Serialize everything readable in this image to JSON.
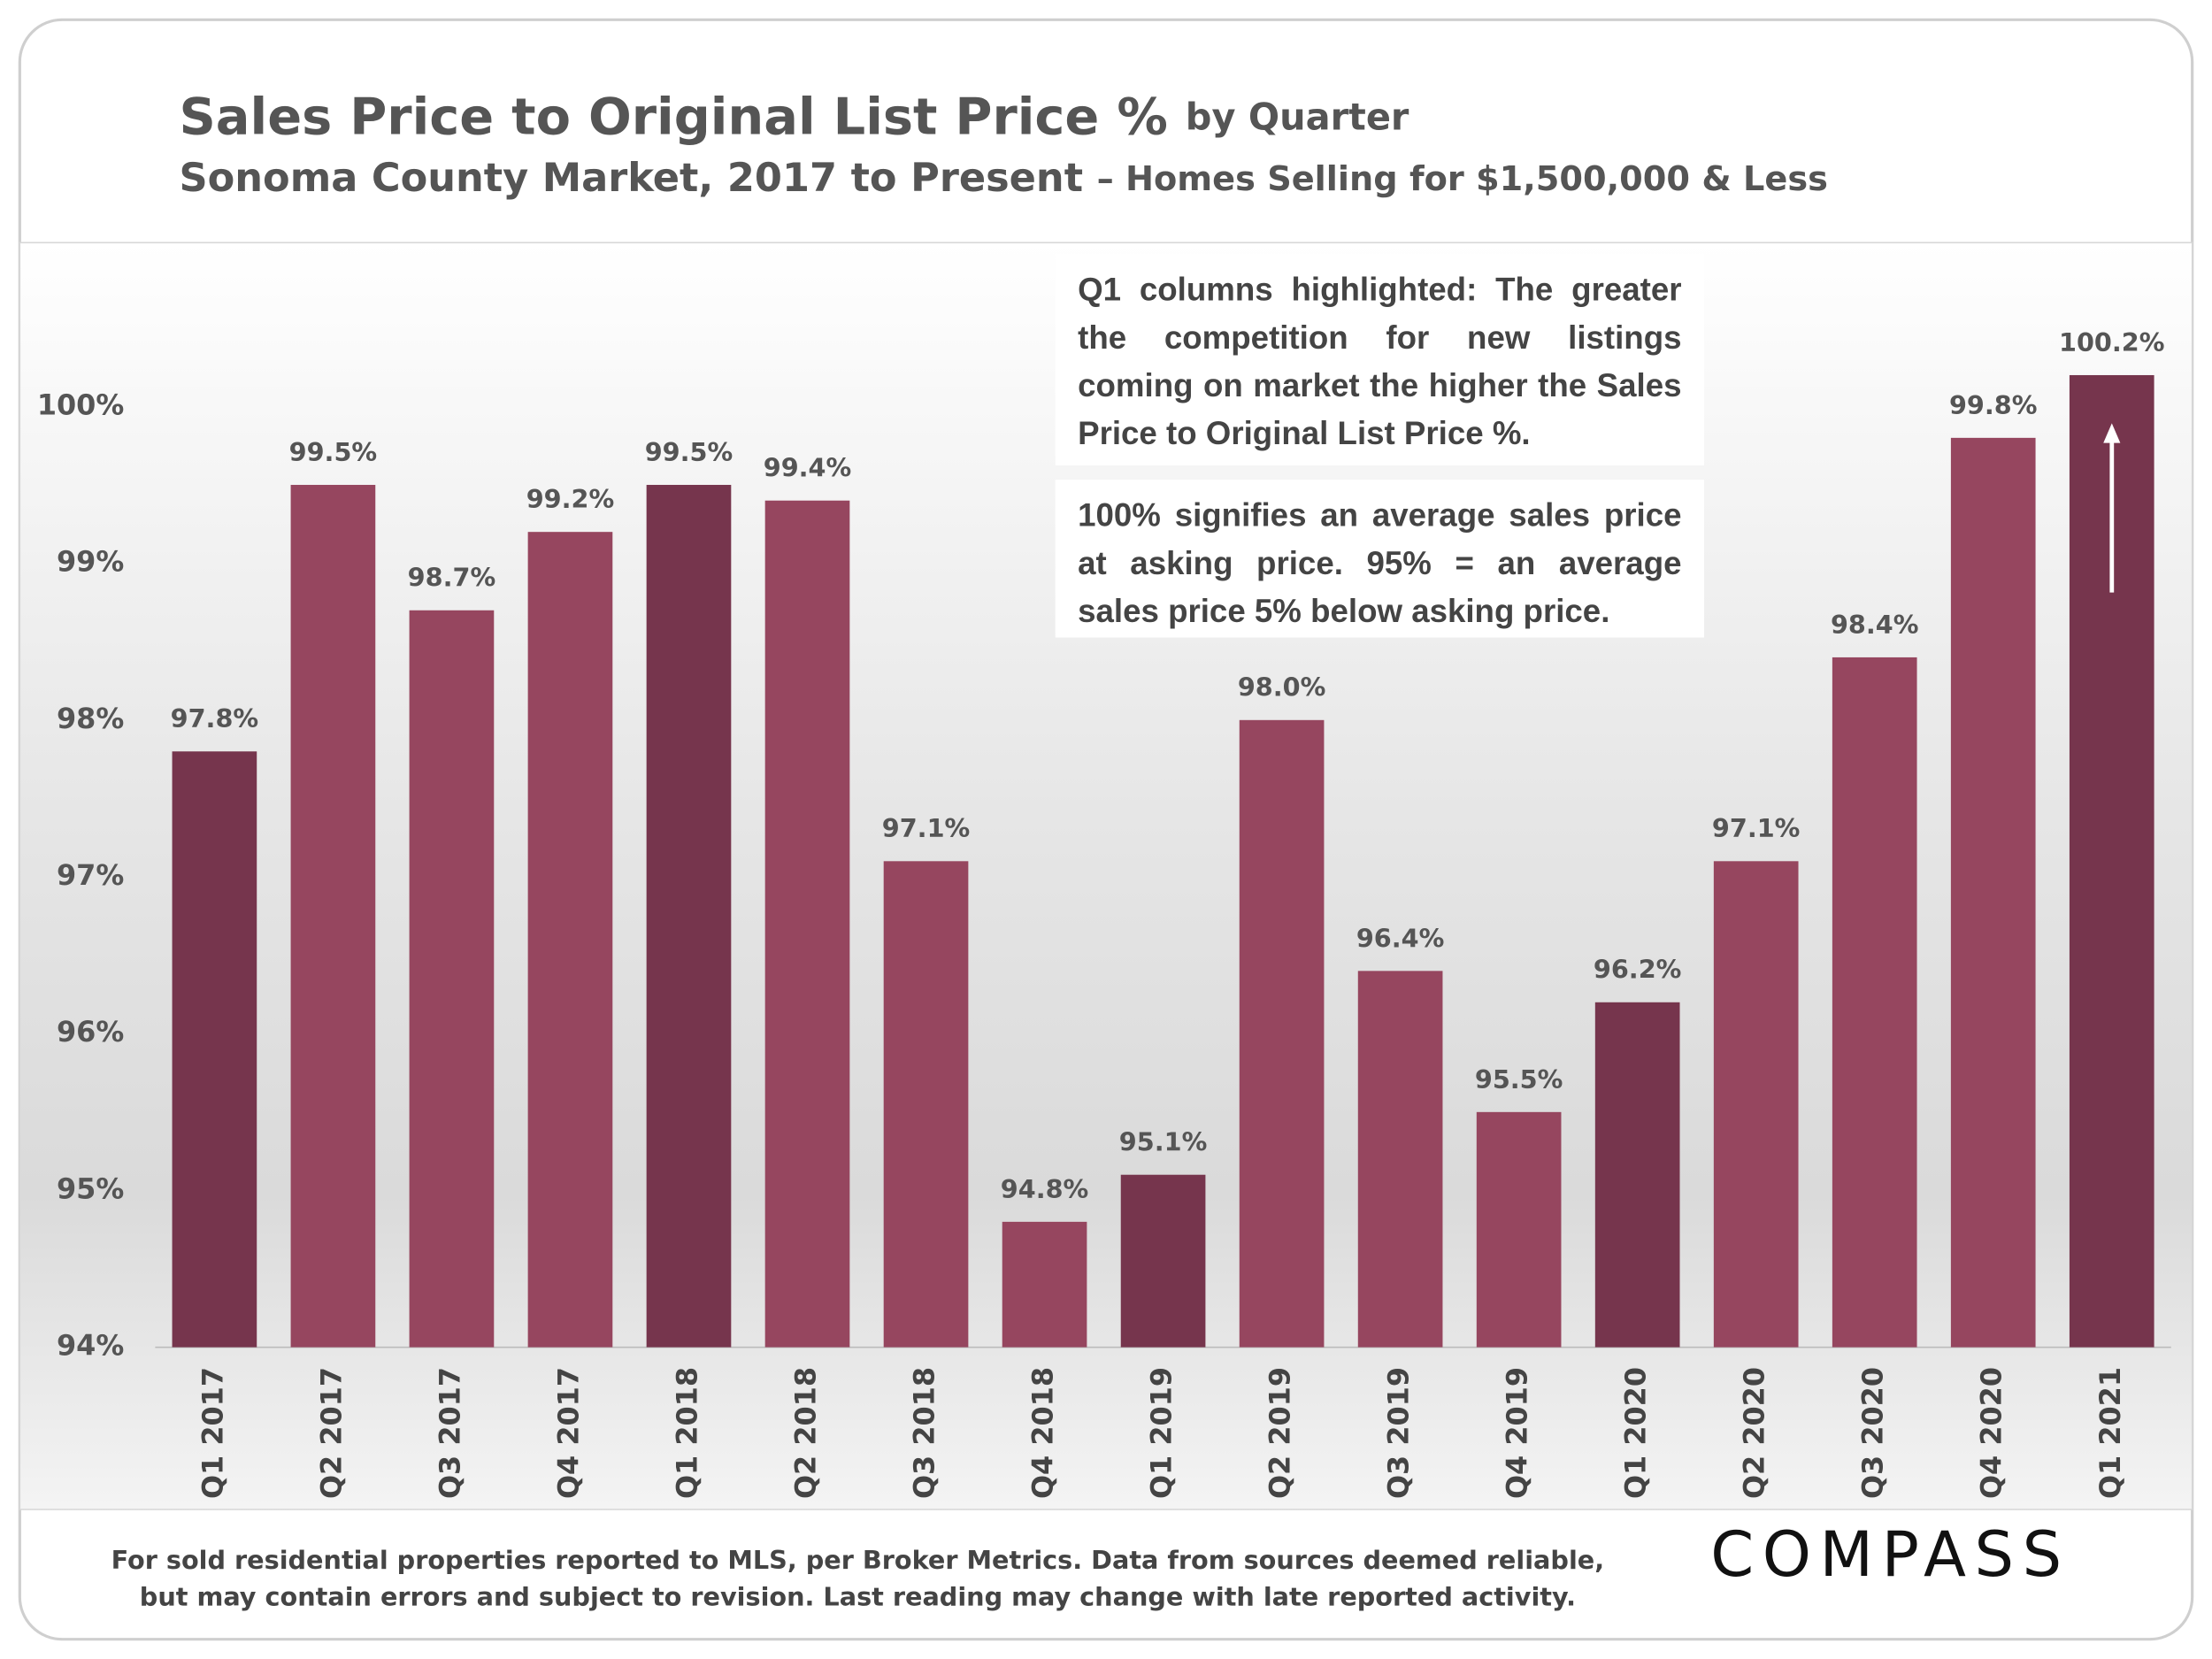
{
  "chart_data": {
    "type": "bar",
    "title": "Sales Price to Original List Price %",
    "title_suffix": "by Quarter",
    "subtitle": "Sonoma County Market, 2017 to Present",
    "subtitle_suffix": "– Homes Selling for $1,500,000 & Less",
    "categories": [
      "Q1 2017",
      "Q2 2017",
      "Q3 2017",
      "Q4 2017",
      "Q1 2018",
      "Q2 2018",
      "Q3 2018",
      "Q4 2018",
      "Q1 2019",
      "Q2 2019",
      "Q3 2019",
      "Q4 2019",
      "Q1 2020",
      "Q2 2020",
      "Q3 2020",
      "Q4 2020",
      "Q1 2021"
    ],
    "values": [
      97.8,
      99.5,
      98.7,
      99.2,
      99.5,
      99.4,
      97.1,
      94.8,
      95.1,
      98.0,
      96.4,
      95.5,
      96.2,
      97.1,
      98.4,
      99.8,
      100.2
    ],
    "value_labels": [
      "97.8%",
      "99.5%",
      "98.7%",
      "99.2%",
      "99.5%",
      "99.4%",
      "97.1%",
      "94.8%",
      "95.1%",
      "98.0%",
      "96.4%",
      "95.5%",
      "96.2%",
      "97.1%",
      "98.4%",
      "99.8%",
      "100.2%"
    ],
    "colors": [
      "#76354d",
      "#96465f",
      "#96465f",
      "#96465f",
      "#76354d",
      "#96465f",
      "#96465f",
      "#96465f",
      "#76354d",
      "#96465f",
      "#96465f",
      "#96465f",
      "#76354d",
      "#96465f",
      "#96465f",
      "#96465f",
      "#76354d"
    ],
    "ylim": [
      94,
      101
    ],
    "yticks": [
      {
        "value": 94,
        "label": "94%"
      },
      {
        "value": 95,
        "label": "95%"
      },
      {
        "value": 96,
        "label": "96%"
      },
      {
        "value": 97,
        "label": "97%"
      },
      {
        "value": 98,
        "label": "98%"
      },
      {
        "value": 99,
        "label": "99%"
      },
      {
        "value": 100,
        "label": "100%"
      }
    ],
    "grid": false,
    "annotations": [
      "Q1 columns highlighted: The greater the competition for new listings coming on market the higher the Sales Price to Original List Price %.",
      "100% signifies an average sales price at asking price. 95% = an average sales price 5% below asking price."
    ],
    "footnote": [
      "For sold residential properties reported to MLS, per Broker Metrics. Data from sources deemed reliable,",
      "but may contain errors and subject to revision. Last reading may change with late reported activity."
    ],
    "logo": "COMPASS"
  }
}
